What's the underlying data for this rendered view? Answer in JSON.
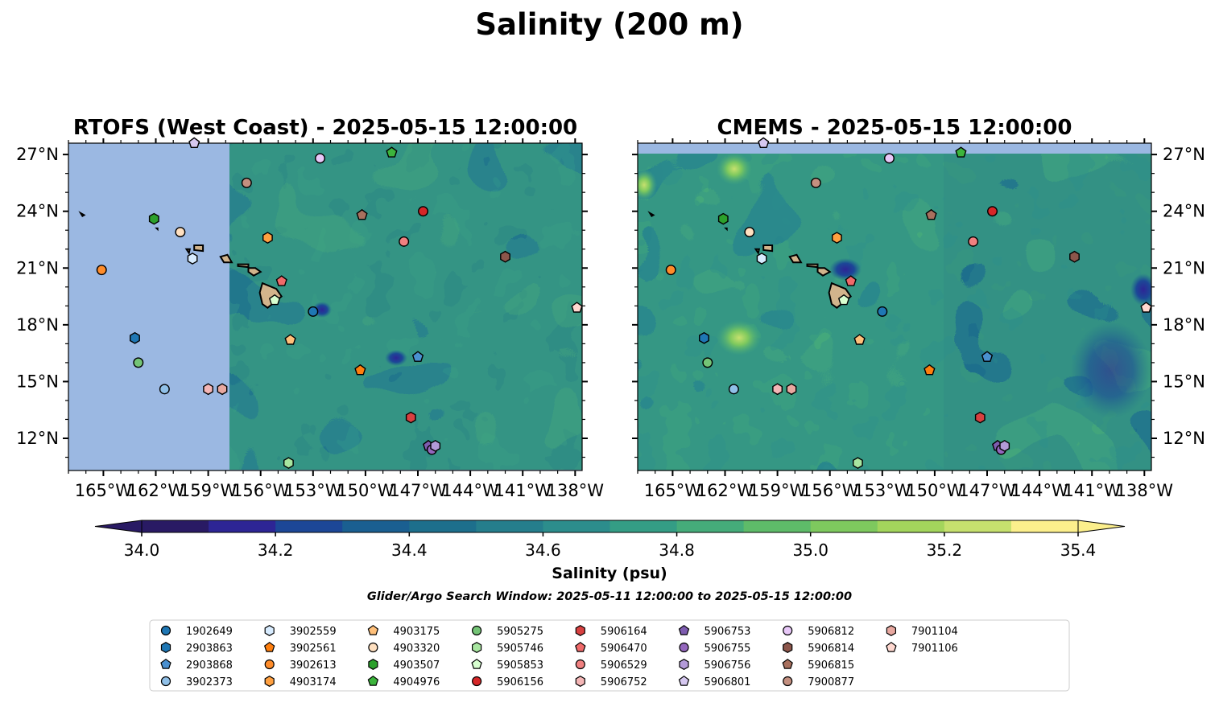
{
  "figure": {
    "title": "Salinity (200 m)",
    "colorbar_label": "Salinity (psu)",
    "search_window": "Glider/Argo Search Window: 2025-05-11 12:00:00 to 2025-05-15 12:00:00"
  },
  "colors": {
    "land_fill": "#d2b48c",
    "no_data_fill": "#9bb8e2",
    "colormap": [
      "#291a64",
      "#2d2595",
      "#1c4797",
      "#1a5f91",
      "#1d6f8c",
      "#257e8c",
      "#2c8d8c",
      "#349d85",
      "#45ac7a",
      "#5ebb69",
      "#7ec95e",
      "#a3d55c",
      "#c6e06e",
      "#fcef8c"
    ]
  },
  "chart_data": [
    {
      "type": "heatmap",
      "title": "RTOFS (West Coast) - 2025-05-15 12:00:00",
      "xlabel": "",
      "ylabel": "",
      "xlim": [
        -167,
        -137.6
      ],
      "ylim": [
        10.3,
        27.6
      ],
      "x_ticks": [
        "165°W",
        "162°W",
        "159°W",
        "156°W",
        "153°W",
        "150°W",
        "147°W",
        "144°W",
        "141°W",
        "138°W"
      ],
      "y_ticks": [
        "27°N",
        "24°N",
        "21°N",
        "18°N",
        "15°N",
        "12°N"
      ],
      "y_tick_values": [
        27,
        24,
        21,
        18,
        15,
        12
      ],
      "x_tick_values": [
        -165,
        -162,
        -159,
        -156,
        -153,
        -150,
        -147,
        -144,
        -141,
        -138
      ],
      "data_extent_lon": [
        -157.8,
        -137.6
      ],
      "grid": false
    },
    {
      "type": "heatmap",
      "title": "CMEMS - 2025-05-15 12:00:00",
      "xlabel": "",
      "ylabel": "",
      "xlim": [
        -167,
        -137.6
      ],
      "ylim": [
        10.3,
        27.6
      ],
      "x_ticks": [
        "165°W",
        "162°W",
        "159°W",
        "156°W",
        "153°W",
        "150°W",
        "147°W",
        "144°W",
        "141°W",
        "138°W"
      ],
      "y_ticks": [
        "27°N",
        "24°N",
        "21°N",
        "18°N",
        "15°N",
        "12°N"
      ],
      "y_tick_values": [
        27,
        24,
        21,
        18,
        15,
        12
      ],
      "x_tick_values": [
        -165,
        -162,
        -159,
        -156,
        -153,
        -150,
        -147,
        -144,
        -141,
        -138
      ],
      "data_extent_lat": [
        10.3,
        27.05
      ],
      "grid": false
    }
  ],
  "colorbar": {
    "min": 33.9,
    "max": 35.4,
    "levels": [
      34.0,
      34.1,
      34.2,
      34.3,
      34.4,
      34.5,
      34.6,
      34.7,
      34.8,
      34.9,
      35.0,
      35.1,
      35.2,
      35.3
    ],
    "extend": "both",
    "tick_labels": [
      "34.0",
      "34.2",
      "34.4",
      "34.6",
      "34.8",
      "35.0",
      "35.2",
      "35.4"
    ],
    "tick_values": [
      34.0,
      34.2,
      34.4,
      34.6,
      34.8,
      35.0,
      35.2,
      35.4
    ]
  },
  "floats": [
    {
      "id": "1902649",
      "marker": "circle",
      "color": "#1f77b4",
      "lon": -153.0,
      "lat": 18.7
    },
    {
      "id": "2903863",
      "marker": "hexagon",
      "color": "#1f77b4",
      "lon": -163.2,
      "lat": 17.3
    },
    {
      "id": "2903868",
      "marker": "pentagon",
      "color": "#4a90d0",
      "lon": -147.0,
      "lat": 16.3
    },
    {
      "id": "3902373",
      "marker": "circle",
      "color": "#90c0e8",
      "lon": -161.5,
      "lat": 14.6
    },
    {
      "id": "3902559",
      "marker": "hexagon",
      "color": "#d8ecff",
      "lon": -159.9,
      "lat": 21.5
    },
    {
      "id": "3902561",
      "marker": "pentagon",
      "color": "#ff7f0e",
      "lon": -150.3,
      "lat": 15.6
    },
    {
      "id": "3902613",
      "marker": "circle",
      "color": "#ff8c2a",
      "lon": -165.1,
      "lat": 20.9
    },
    {
      "id": "4903174",
      "marker": "hexagon",
      "color": "#ffa040",
      "lon": -155.6,
      "lat": 22.6
    },
    {
      "id": "4903175",
      "marker": "pentagon",
      "color": "#ffc07a",
      "lon": -154.3,
      "lat": 17.2
    },
    {
      "id": "4903320",
      "marker": "circle",
      "color": "#ffe0c0",
      "lon": -160.6,
      "lat": 22.9
    },
    {
      "id": "4903507",
      "marker": "hexagon",
      "color": "#2ca02c",
      "lon": -162.1,
      "lat": 23.6
    },
    {
      "id": "4904976",
      "marker": "pentagon",
      "color": "#3cb43c",
      "lon": -148.5,
      "lat": 27.1
    },
    {
      "id": "5905275",
      "marker": "circle",
      "color": "#74c476",
      "lon": -163.0,
      "lat": 16.0
    },
    {
      "id": "5905746",
      "marker": "hexagon",
      "color": "#a8e6a0",
      "lon": -154.4,
      "lat": 10.7
    },
    {
      "id": "5905853",
      "marker": "pentagon",
      "color": "#d8ffd0",
      "lon": -155.2,
      "lat": 19.3
    },
    {
      "id": "5906156",
      "marker": "circle",
      "color": "#d62728",
      "lon": -146.7,
      "lat": 24.0
    },
    {
      "id": "5906164",
      "marker": "hexagon",
      "color": "#d84040",
      "lon": -147.4,
      "lat": 13.1
    },
    {
      "id": "5906470",
      "marker": "pentagon",
      "color": "#f06a6a",
      "lon": -154.8,
      "lat": 20.3
    },
    {
      "id": "5906529",
      "marker": "circle",
      "color": "#f08080",
      "lon": -147.8,
      "lat": 22.4
    },
    {
      "id": "5906752",
      "marker": "hexagon",
      "color": "#f4b6b6",
      "lon": -159.0,
      "lat": 14.6
    },
    {
      "id": "5906753",
      "marker": "pentagon",
      "color": "#7e5cb0",
      "lon": -146.4,
      "lat": 11.6
    },
    {
      "id": "5906755",
      "marker": "circle",
      "color": "#9467bd",
      "lon": -146.2,
      "lat": 11.4
    },
    {
      "id": "5906756",
      "marker": "hexagon",
      "color": "#b39ad8",
      "lon": -146.0,
      "lat": 11.6
    },
    {
      "id": "5906801",
      "marker": "pentagon",
      "color": "#d6c8f0",
      "lon": -159.8,
      "lat": 27.6
    },
    {
      "id": "5906812",
      "marker": "circle",
      "color": "#e8c8f8",
      "lon": -152.6,
      "lat": 26.8
    },
    {
      "id": "5906814",
      "marker": "hexagon",
      "color": "#8c564b",
      "lon": -142.0,
      "lat": 21.6
    },
    {
      "id": "5906815",
      "marker": "pentagon",
      "color": "#a8705e",
      "lon": -150.2,
      "lat": 23.8
    },
    {
      "id": "7900877",
      "marker": "circle",
      "color": "#c49080",
      "lon": -156.8,
      "lat": 25.5
    },
    {
      "id": "7901104",
      "marker": "hexagon",
      "color": "#e8a8a0",
      "lon": -158.2,
      "lat": 14.6
    },
    {
      "id": "7901106",
      "marker": "pentagon",
      "color": "#ffd8d0",
      "lon": -137.9,
      "lat": 18.9
    }
  ]
}
